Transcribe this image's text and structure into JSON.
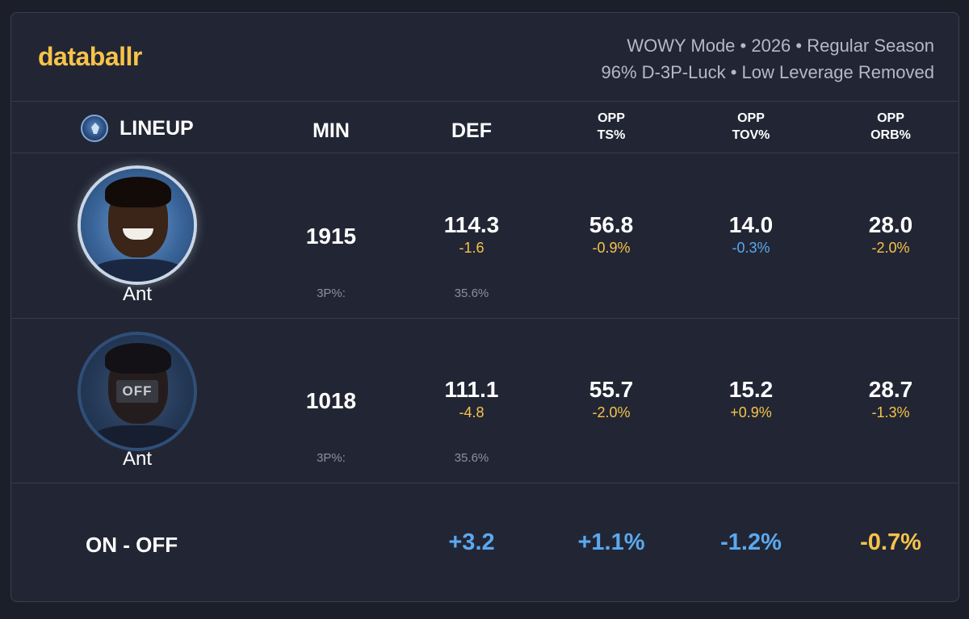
{
  "brand": "databallr",
  "mode_line1": "WOWY Mode • 2026 • Regular Season",
  "mode_line2": "96% D-3P-Luck • Low Leverage Removed",
  "columns": {
    "lineup": "LINEUP",
    "min": "MIN",
    "def": "DEF",
    "opp_ts_1": "OPP",
    "opp_ts_2": "TS%",
    "opp_tov_1": "OPP",
    "opp_tov_2": "TOV%",
    "opp_orb_1": "OPP",
    "opp_orb_2": "ORB%"
  },
  "rows": [
    {
      "player": "Ant",
      "min": "1915",
      "def": "114.3",
      "def_delta": "-1.6",
      "opp_ts": "56.8",
      "opp_ts_delta": "-0.9%",
      "opp_tov": "14.0",
      "opp_tov_delta": "-0.3%",
      "opp_orb": "28.0",
      "opp_orb_delta": "-2.0%",
      "tp_label": "3P%:",
      "tp_value": "35.6%"
    },
    {
      "player": "Ant",
      "badge": "OFF",
      "min": "1018",
      "def": "111.1",
      "def_delta": "-4.8",
      "opp_ts": "55.7",
      "opp_ts_delta": "-2.0%",
      "opp_tov": "15.2",
      "opp_tov_delta": "+0.9%",
      "opp_orb": "28.7",
      "opp_orb_delta": "-1.3%",
      "tp_label": "3P%:",
      "tp_value": "35.6%"
    }
  ],
  "diff": {
    "label": "ON - OFF",
    "def": "+3.2",
    "opp_ts": "+1.1%",
    "opp_tov": "-1.2%",
    "opp_orb": "-0.7%"
  },
  "colors": {
    "brand": "#f7c34a",
    "positive": "#5aa9f0",
    "negative": "#f7c34a",
    "background": "#222634"
  }
}
